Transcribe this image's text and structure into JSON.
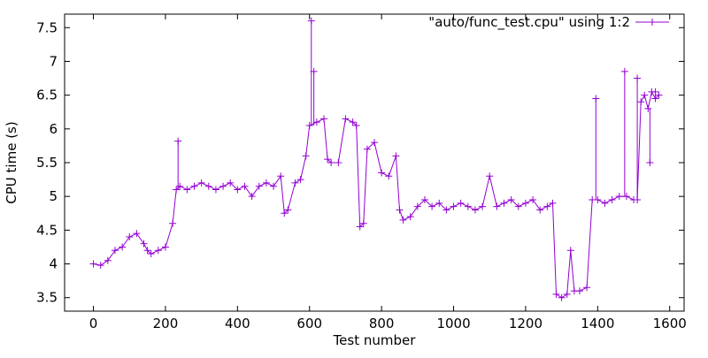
{
  "chart_data": {
    "type": "line",
    "title": "",
    "xlabel": "Test number",
    "ylabel": "CPU time (s)",
    "xlim": [
      -80,
      1640
    ],
    "ylim": [
      3.3,
      7.7
    ],
    "x_ticks": [
      0,
      200,
      400,
      600,
      800,
      1000,
      1200,
      1400,
      1600
    ],
    "y_ticks": [
      3.5,
      4,
      4.5,
      5,
      5.5,
      6,
      6.5,
      7,
      7.5
    ],
    "x_tick_labels": [
      "0",
      "200",
      "400",
      "600",
      "800",
      "1000",
      "1200",
      "1400",
      "1600"
    ],
    "y_tick_labels": [
      "3.5",
      "4",
      "4.5",
      "5",
      "5.5",
      "6",
      "6.5",
      "7",
      "7.5"
    ],
    "grid": false,
    "legend": {
      "position": "top-right",
      "entries": [
        "\"auto/func_test.cpu\" using 1:2"
      ]
    },
    "series": [
      {
        "name": "\"auto/func_test.cpu\" using 1:2",
        "color": "#9400d3",
        "marker": "plus",
        "x": [
          0,
          20,
          40,
          60,
          80,
          100,
          120,
          140,
          150,
          160,
          180,
          200,
          220,
          230,
          240,
          260,
          280,
          300,
          320,
          340,
          360,
          380,
          400,
          420,
          440,
          460,
          480,
          500,
          520,
          530,
          540,
          560,
          575,
          590,
          600,
          620,
          640,
          650,
          660,
          680,
          700,
          720,
          730,
          740,
          750,
          760,
          780,
          800,
          820,
          840,
          850,
          860,
          880,
          900,
          920,
          940,
          960,
          980,
          1000,
          1020,
          1040,
          1060,
          1080,
          1100,
          1120,
          1140,
          1160,
          1180,
          1200,
          1220,
          1240,
          1260,
          1275,
          1285,
          1300,
          1315,
          1325,
          1335,
          1350,
          1370,
          1385,
          1400,
          1420,
          1440,
          1460,
          1480,
          1500,
          1510,
          1520,
          1530,
          1540,
          1550,
          1560,
          1570
        ],
        "y": [
          4.0,
          3.98,
          4.05,
          4.2,
          4.25,
          4.4,
          4.45,
          4.3,
          4.2,
          4.15,
          4.2,
          4.25,
          4.6,
          5.1,
          5.15,
          5.1,
          5.15,
          5.2,
          5.15,
          5.1,
          5.15,
          5.2,
          5.1,
          5.15,
          5.0,
          5.15,
          5.2,
          5.15,
          5.3,
          4.75,
          4.8,
          5.2,
          5.25,
          5.6,
          6.05,
          6.1,
          6.15,
          5.55,
          5.5,
          5.5,
          6.15,
          6.1,
          6.05,
          4.55,
          4.6,
          5.7,
          5.8,
          5.35,
          5.3,
          5.6,
          4.8,
          4.65,
          4.7,
          4.85,
          4.95,
          4.85,
          4.9,
          4.8,
          4.85,
          4.9,
          4.85,
          4.8,
          4.85,
          5.3,
          4.85,
          4.9,
          4.95,
          4.85,
          4.9,
          4.95,
          4.8,
          4.85,
          4.9,
          3.55,
          3.5,
          3.55,
          4.2,
          3.6,
          3.6,
          3.65,
          4.95,
          4.95,
          4.9,
          4.95,
          5.0,
          5.0,
          4.95,
          4.95,
          6.4,
          6.5,
          6.3,
          6.55,
          6.45,
          6.5
        ],
        "spikes": [
          {
            "x": 235,
            "y": 5.82
          },
          {
            "x": 605,
            "y": 7.6
          },
          {
            "x": 612,
            "y": 6.85
          },
          {
            "x": 1395,
            "y": 6.45
          },
          {
            "x": 1475,
            "y": 6.85
          },
          {
            "x": 1510,
            "y": 6.75
          },
          {
            "x": 1545,
            "y": 5.5
          },
          {
            "x": 1560,
            "y": 6.55
          }
        ]
      }
    ]
  }
}
